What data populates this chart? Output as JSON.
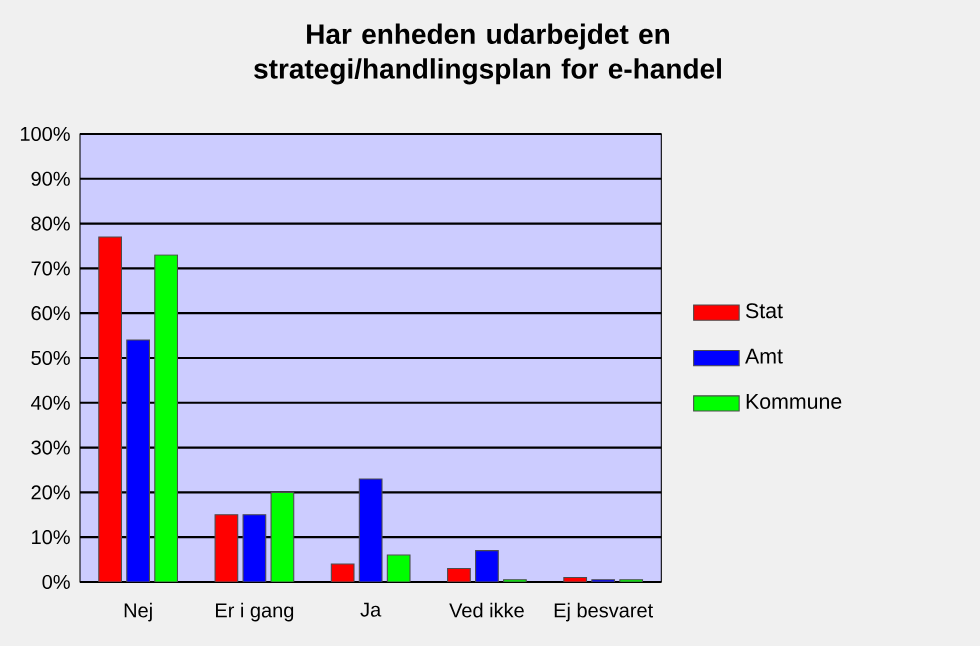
{
  "chart_data": {
    "type": "bar",
    "title": "Har enheden udarbejdet en strategi/handlingsplan for e-handel",
    "categories": [
      "Nej",
      "Er i gang",
      "Ja",
      "Ved ikke",
      "Ej besvaret"
    ],
    "series": [
      {
        "name": "Stat",
        "color": "#ff0000",
        "values": [
          77,
          15,
          4,
          3,
          1
        ]
      },
      {
        "name": "Amt",
        "color": "#0000ff",
        "values": [
          54,
          15,
          23,
          7,
          0.5
        ]
      },
      {
        "name": "Kommune",
        "color": "#00ff00",
        "values": [
          73,
          20,
          6,
          0.5,
          0.5
        ]
      }
    ],
    "ylim": [
      0,
      100
    ],
    "yticks": [
      {
        "value": 0,
        "label": "0%"
      },
      {
        "value": 10,
        "label": "10%"
      },
      {
        "value": 20,
        "label": "20%"
      },
      {
        "value": 30,
        "label": "30%"
      },
      {
        "value": 40,
        "label": "40%"
      },
      {
        "value": 50,
        "label": "50%"
      },
      {
        "value": 60,
        "label": "60%"
      },
      {
        "value": 70,
        "label": "70%"
      },
      {
        "value": 80,
        "label": "80%"
      },
      {
        "value": 90,
        "label": "90%"
      },
      {
        "value": 100,
        "label": "100%"
      }
    ],
    "grid": "y",
    "legend": "right"
  }
}
